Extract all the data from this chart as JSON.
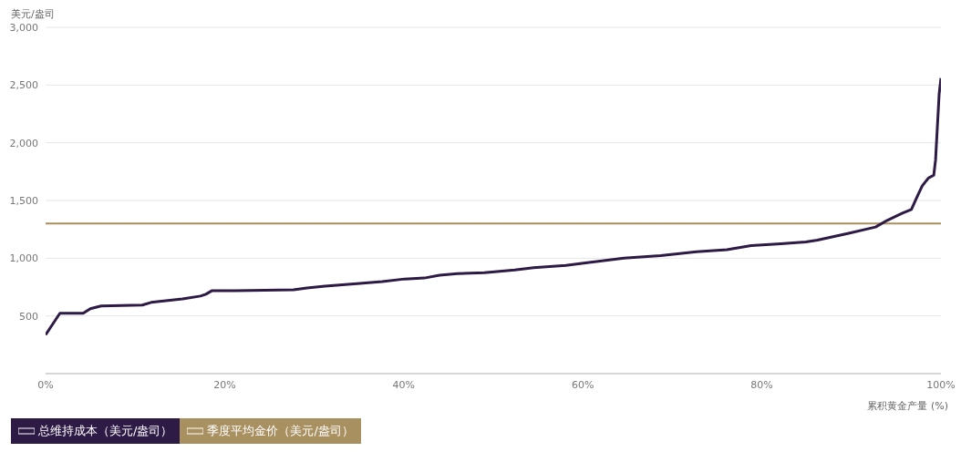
{
  "chart_data": {
    "type": "line",
    "ylabel": "美元/盎司",
    "xlabel": "累积黄金产量 (%)",
    "x": [
      0,
      1.6,
      4.2,
      5,
      6.2,
      10.8,
      11.8,
      15.3,
      17.3,
      17.9,
      18.6,
      21.2,
      27.7,
      29.2,
      31.2,
      35.1,
      37.6,
      40.1,
      42.3,
      44,
      46,
      49,
      52.4,
      54.5,
      58.1,
      60.5,
      64.6,
      68.7,
      72.7,
      76.1,
      78.8,
      82.1,
      84.9,
      86.2,
      89.7,
      92.7,
      94,
      95.7,
      96.7,
      97.2,
      97.9,
      98.6,
      99.2,
      99.4,
      99.8,
      100
    ],
    "series": [
      {
        "name": "总维持成本（美元/盎司）",
        "color": "#2d1a45",
        "values": [
          336,
          523,
          523,
          562,
          586,
          594,
          617,
          648,
          672,
          688,
          719,
          719,
          727,
          742,
          758,
          781,
          797,
          820,
          828,
          852,
          867,
          875,
          898,
          917,
          937,
          961,
          1000,
          1023,
          1055,
          1074,
          1109,
          1125,
          1141,
          1156,
          1216,
          1270,
          1328,
          1390,
          1422,
          1508,
          1625,
          1695,
          1719,
          1852,
          2422,
          2560
        ]
      }
    ],
    "ref_lines": [
      {
        "axis": "y",
        "value": 1300,
        "label": "季度平均金价（美元/盎司）",
        "color": "#a89060"
      }
    ],
    "xlim": [
      0,
      100
    ],
    "xticks": [
      {
        "value": 0,
        "label": "0%"
      },
      {
        "value": 20,
        "label": "20%"
      },
      {
        "value": 40,
        "label": "40%"
      },
      {
        "value": 60,
        "label": "60%"
      },
      {
        "value": 80,
        "label": "80%"
      },
      {
        "value": 100,
        "label": "100%"
      }
    ],
    "ylim": [
      0,
      3000
    ],
    "yticks": [
      {
        "value": 0,
        "label": null
      },
      {
        "value": 500,
        "label": "500"
      },
      {
        "value": 1000,
        "label": "1,000"
      },
      {
        "value": 1500,
        "label": "1,500"
      },
      {
        "value": 2000,
        "label": "2,000"
      },
      {
        "value": 2500,
        "label": "2,500"
      },
      {
        "value": 3000,
        "label": "3,000"
      }
    ],
    "grid": "y",
    "legend": "bottom left",
    "marker": "none"
  }
}
